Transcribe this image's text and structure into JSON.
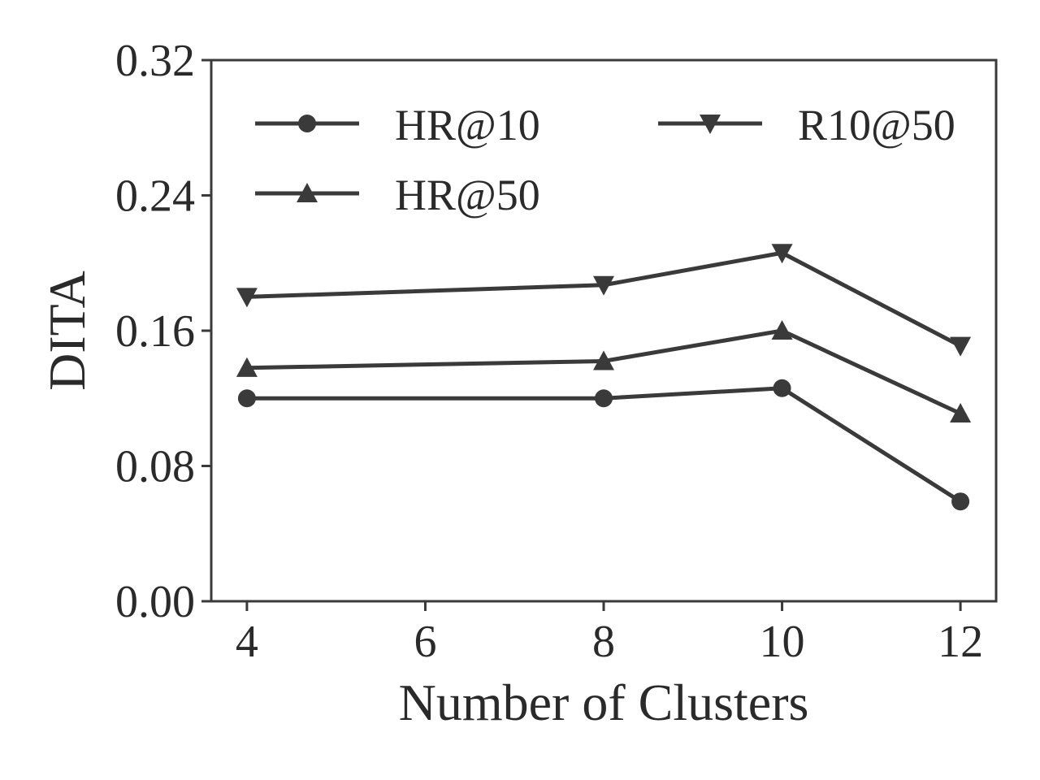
{
  "chart_data": {
    "type": "line",
    "xlabel": "Number of Clusters",
    "ylabel": "DITA",
    "x": [
      4,
      8,
      10,
      12
    ],
    "xlim": [
      3.6,
      12.4
    ],
    "ylim": [
      0.0,
      0.32
    ],
    "xticks": [
      "4",
      "6",
      "8",
      "10",
      "12"
    ],
    "yticks": [
      "0.00",
      "0.08",
      "0.16",
      "0.24",
      "0.32"
    ],
    "xtick_values": [
      4,
      6,
      8,
      10,
      12
    ],
    "ytick_values": [
      0.0,
      0.08,
      0.16,
      0.24,
      0.32
    ],
    "grid": false,
    "legend_position": "top",
    "line_color": "#3a3a3a",
    "series": [
      {
        "name": "HR@10",
        "marker": "circle",
        "values": [
          0.12,
          0.12,
          0.126,
          0.059
        ]
      },
      {
        "name": "HR@50",
        "marker": "triangle-up",
        "values": [
          0.138,
          0.142,
          0.16,
          0.111
        ]
      },
      {
        "name": "R10@50",
        "marker": "triangle-down",
        "values": [
          0.18,
          0.187,
          0.206,
          0.151
        ]
      }
    ]
  }
}
